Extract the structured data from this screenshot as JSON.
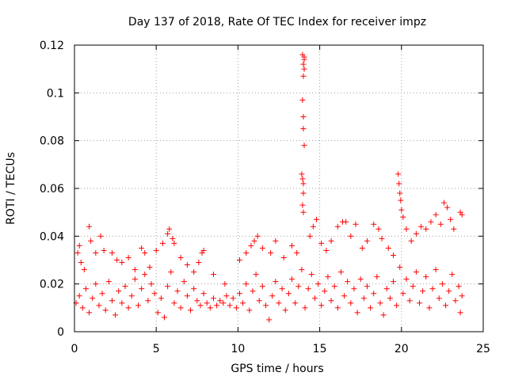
{
  "chart_data": {
    "type": "scatter",
    "title": "Day 137 of 2018, Rate Of TEC Index for receiver impz",
    "xlabel": "GPS time / hours",
    "ylabel": "ROTI / TECUs",
    "xlim": [
      0,
      25
    ],
    "ylim": [
      0,
      0.12
    ],
    "xticks": [
      0,
      5,
      10,
      15,
      20,
      25
    ],
    "yticks": [
      0,
      0.02,
      0.04,
      0.06,
      0.08,
      0.1,
      0.12
    ],
    "xtick_labels": [
      "0",
      "5",
      "10",
      "15",
      "20",
      "25"
    ],
    "ytick_labels": [
      "0",
      "0.02",
      "0.04",
      "0.06",
      "0.08",
      "0.1",
      "0.12"
    ],
    "grid": true,
    "marker": "+",
    "color": "#ff0000",
    "series": [
      {
        "name": "ROTI",
        "points": [
          [
            0.2,
            0.033
          ],
          [
            0.3,
            0.036
          ],
          [
            0.4,
            0.029
          ],
          [
            0.6,
            0.026
          ],
          [
            0.9,
            0.044
          ],
          [
            1.0,
            0.038
          ],
          [
            1.3,
            0.033
          ],
          [
            1.6,
            0.04
          ],
          [
            1.8,
            0.034
          ],
          [
            2.3,
            0.033
          ],
          [
            2.6,
            0.03
          ],
          [
            2.9,
            0.029
          ],
          [
            3.3,
            0.031
          ],
          [
            3.7,
            0.026
          ],
          [
            4.1,
            0.035
          ],
          [
            4.3,
            0.033
          ],
          [
            4.6,
            0.027
          ],
          [
            5.0,
            0.034
          ],
          [
            5.4,
            0.037
          ],
          [
            5.7,
            0.041
          ],
          [
            5.8,
            0.043
          ],
          [
            6.0,
            0.039
          ],
          [
            6.1,
            0.037
          ],
          [
            6.5,
            0.031
          ],
          [
            6.9,
            0.028
          ],
          [
            7.3,
            0.025
          ],
          [
            7.6,
            0.029
          ],
          [
            7.8,
            0.033
          ],
          [
            7.9,
            0.034
          ],
          [
            8.5,
            0.024
          ],
          [
            9.2,
            0.02
          ],
          [
            10.1,
            0.03
          ],
          [
            10.5,
            0.033
          ],
          [
            10.8,
            0.036
          ],
          [
            11.0,
            0.038
          ],
          [
            11.2,
            0.04
          ],
          [
            11.5,
            0.035
          ],
          [
            12.0,
            0.033
          ],
          [
            12.3,
            0.038
          ],
          [
            12.8,
            0.031
          ],
          [
            13.3,
            0.036
          ],
          [
            13.6,
            0.033
          ],
          [
            13.9,
            0.066
          ],
          [
            13.95,
            0.064
          ],
          [
            14.0,
            0.062
          ],
          [
            14.0,
            0.058
          ],
          [
            13.95,
            0.053
          ],
          [
            14.0,
            0.05
          ],
          [
            14.05,
            0.078
          ],
          [
            14.0,
            0.085
          ],
          [
            14.0,
            0.09
          ],
          [
            13.95,
            0.097
          ],
          [
            14.0,
            0.107
          ],
          [
            14.05,
            0.11
          ],
          [
            14.0,
            0.112
          ],
          [
            14.05,
            0.115
          ],
          [
            13.95,
            0.116
          ],
          [
            14.05,
            0.114
          ],
          [
            14.4,
            0.04
          ],
          [
            14.6,
            0.044
          ],
          [
            14.8,
            0.047
          ],
          [
            15.1,
            0.037
          ],
          [
            15.4,
            0.034
          ],
          [
            15.7,
            0.038
          ],
          [
            16.1,
            0.044
          ],
          [
            16.4,
            0.046
          ],
          [
            16.6,
            0.046
          ],
          [
            16.9,
            0.04
          ],
          [
            17.2,
            0.045
          ],
          [
            17.6,
            0.035
          ],
          [
            17.9,
            0.038
          ],
          [
            18.3,
            0.045
          ],
          [
            18.6,
            0.043
          ],
          [
            18.8,
            0.039
          ],
          [
            19.2,
            0.035
          ],
          [
            19.5,
            0.032
          ],
          [
            19.8,
            0.066
          ],
          [
            19.85,
            0.062
          ],
          [
            19.9,
            0.058
          ],
          [
            19.95,
            0.055
          ],
          [
            20.0,
            0.051
          ],
          [
            20.1,
            0.048
          ],
          [
            20.3,
            0.043
          ],
          [
            20.6,
            0.038
          ],
          [
            20.9,
            0.041
          ],
          [
            21.2,
            0.044
          ],
          [
            21.5,
            0.043
          ],
          [
            21.8,
            0.046
          ],
          [
            22.1,
            0.049
          ],
          [
            22.4,
            0.045
          ],
          [
            22.6,
            0.054
          ],
          [
            22.8,
            0.052
          ],
          [
            23.0,
            0.047
          ],
          [
            23.2,
            0.043
          ],
          [
            23.6,
            0.05
          ],
          [
            23.7,
            0.049
          ],
          [
            0.1,
            0.012
          ],
          [
            0.3,
            0.015
          ],
          [
            0.5,
            0.01
          ],
          [
            0.7,
            0.018
          ],
          [
            0.9,
            0.008
          ],
          [
            1.1,
            0.014
          ],
          [
            1.3,
            0.02
          ],
          [
            1.5,
            0.011
          ],
          [
            1.7,
            0.016
          ],
          [
            1.9,
            0.009
          ],
          [
            2.1,
            0.021
          ],
          [
            2.3,
            0.013
          ],
          [
            2.5,
            0.007
          ],
          [
            2.7,
            0.017
          ],
          [
            2.9,
            0.012
          ],
          [
            3.1,
            0.019
          ],
          [
            3.3,
            0.01
          ],
          [
            3.5,
            0.015
          ],
          [
            3.7,
            0.022
          ],
          [
            3.9,
            0.011
          ],
          [
            4.1,
            0.018
          ],
          [
            4.3,
            0.024
          ],
          [
            4.5,
            0.013
          ],
          [
            4.7,
            0.02
          ],
          [
            4.9,
            0.016
          ],
          [
            5.1,
            0.008
          ],
          [
            5.3,
            0.014
          ],
          [
            5.5,
            0.006
          ],
          [
            5.7,
            0.019
          ],
          [
            5.9,
            0.025
          ],
          [
            6.1,
            0.012
          ],
          [
            6.3,
            0.017
          ],
          [
            6.5,
            0.01
          ],
          [
            6.7,
            0.021
          ],
          [
            6.9,
            0.015
          ],
          [
            7.1,
            0.009
          ],
          [
            7.3,
            0.018
          ],
          [
            7.5,
            0.013
          ],
          [
            7.7,
            0.011
          ],
          [
            7.9,
            0.016
          ],
          [
            8.1,
            0.012
          ],
          [
            8.3,
            0.01
          ],
          [
            8.5,
            0.014
          ],
          [
            8.7,
            0.011
          ],
          [
            8.9,
            0.013
          ],
          [
            9.1,
            0.012
          ],
          [
            9.3,
            0.015
          ],
          [
            9.5,
            0.011
          ],
          [
            9.7,
            0.014
          ],
          [
            9.9,
            0.01
          ],
          [
            10.1,
            0.016
          ],
          [
            10.3,
            0.012
          ],
          [
            10.5,
            0.02
          ],
          [
            10.7,
            0.009
          ],
          [
            10.9,
            0.017
          ],
          [
            11.1,
            0.024
          ],
          [
            11.3,
            0.013
          ],
          [
            11.5,
            0.019
          ],
          [
            11.7,
            0.011
          ],
          [
            11.9,
            0.005
          ],
          [
            12.1,
            0.015
          ],
          [
            12.3,
            0.021
          ],
          [
            12.5,
            0.012
          ],
          [
            12.7,
            0.018
          ],
          [
            12.9,
            0.009
          ],
          [
            13.1,
            0.016
          ],
          [
            13.3,
            0.022
          ],
          [
            13.5,
            0.012
          ],
          [
            13.7,
            0.019
          ],
          [
            13.9,
            0.026
          ],
          [
            14.1,
            0.01
          ],
          [
            14.3,
            0.018
          ],
          [
            14.5,
            0.024
          ],
          [
            14.7,
            0.014
          ],
          [
            14.9,
            0.02
          ],
          [
            15.1,
            0.011
          ],
          [
            15.3,
            0.017
          ],
          [
            15.5,
            0.023
          ],
          [
            15.7,
            0.013
          ],
          [
            15.9,
            0.019
          ],
          [
            16.1,
            0.01
          ],
          [
            16.3,
            0.025
          ],
          [
            16.5,
            0.015
          ],
          [
            16.7,
            0.021
          ],
          [
            16.9,
            0.012
          ],
          [
            17.1,
            0.018
          ],
          [
            17.3,
            0.008
          ],
          [
            17.5,
            0.022
          ],
          [
            17.7,
            0.014
          ],
          [
            17.9,
            0.019
          ],
          [
            18.1,
            0.01
          ],
          [
            18.3,
            0.016
          ],
          [
            18.5,
            0.023
          ],
          [
            18.7,
            0.012
          ],
          [
            18.9,
            0.007
          ],
          [
            19.1,
            0.018
          ],
          [
            19.3,
            0.014
          ],
          [
            19.5,
            0.021
          ],
          [
            19.7,
            0.011
          ],
          [
            19.9,
            0.027
          ],
          [
            20.1,
            0.016
          ],
          [
            20.3,
            0.022
          ],
          [
            20.5,
            0.013
          ],
          [
            20.7,
            0.019
          ],
          [
            20.9,
            0.025
          ],
          [
            21.1,
            0.012
          ],
          [
            21.3,
            0.017
          ],
          [
            21.5,
            0.023
          ],
          [
            21.7,
            0.01
          ],
          [
            21.9,
            0.018
          ],
          [
            22.1,
            0.026
          ],
          [
            22.3,
            0.014
          ],
          [
            22.5,
            0.02
          ],
          [
            22.7,
            0.011
          ],
          [
            22.9,
            0.017
          ],
          [
            23.1,
            0.024
          ],
          [
            23.3,
            0.013
          ],
          [
            23.5,
            0.019
          ],
          [
            23.6,
            0.008
          ],
          [
            23.7,
            0.015
          ]
        ]
      }
    ]
  }
}
